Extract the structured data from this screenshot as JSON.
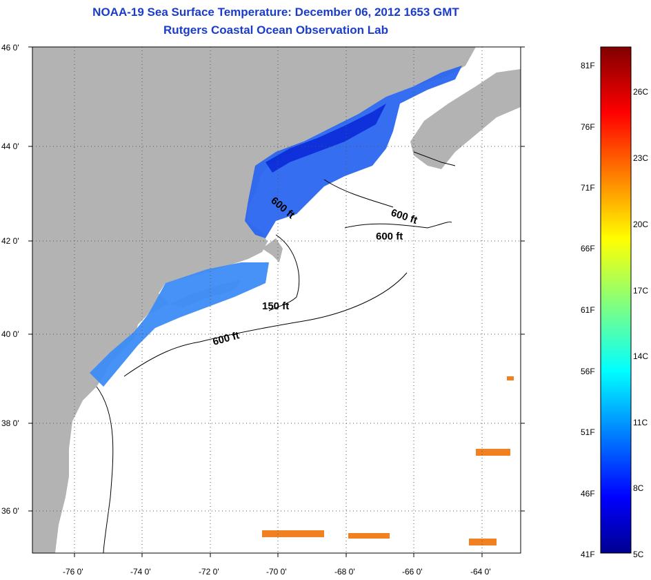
{
  "title_line1": "NOAA-19 Sea Surface Temperature:  December 06, 2012 1653 GMT",
  "title_line2": "Rutgers Coastal Ocean Observation Lab",
  "lat_labels": [
    "46 0'",
    "44 0'",
    "42 0'",
    "40 0'",
    "38 0'",
    "36 0'"
  ],
  "lon_labels": [
    "-76 0'",
    "-74 0'",
    "-72 0'",
    "-70 0'",
    "-68 0'",
    "-66 0'",
    "-64 0'"
  ],
  "contour_labels": [
    "600 ft",
    "600 ft",
    "600 ft",
    "150 ft",
    "600 ft"
  ],
  "colorbar": {
    "f_labels": [
      "81F",
      "76F",
      "71F",
      "66F",
      "61F",
      "56F",
      "51F",
      "46F",
      "41F"
    ],
    "c_labels": [
      "26C",
      "23C",
      "20C",
      "17C",
      "14C",
      "11C",
      "8C",
      "5C"
    ]
  },
  "colors": {
    "land": "#b3b3b3",
    "ocean": "#ffffff",
    "title": "#1a3cc8"
  }
}
